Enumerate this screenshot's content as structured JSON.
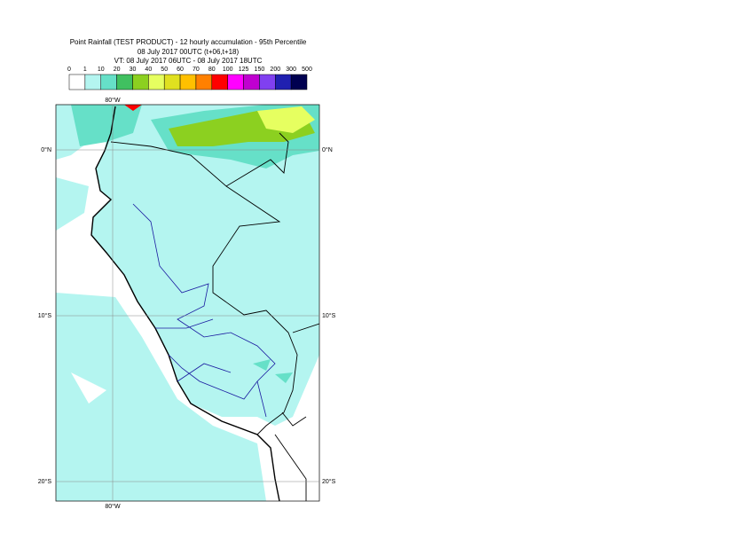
{
  "header": {
    "lines": [
      "Point Rainfall (TEST PRODUCT) - 12 hourly accumulation - 95th Percentile",
      "08 July 2017 00UTC (t+06,t+18)",
      "VT: 08 July 2017 06UTC - 08 July 2017 18UTC"
    ]
  },
  "legend": {
    "labels": [
      "0",
      "1",
      "10",
      "20",
      "30",
      "40",
      "50",
      "60",
      "70",
      "80",
      "100",
      "125",
      "150",
      "200",
      "300",
      "500"
    ],
    "colors": [
      "#ffffff",
      "#b4f5f0",
      "#66e0c8",
      "#40c060",
      "#8cd020",
      "#e6ff60",
      "#e0e020",
      "#ffc000",
      "#ff8000",
      "#ff0000",
      "#ff00ff",
      "#c000d0",
      "#8040f0",
      "#2020b0",
      "#000050"
    ]
  },
  "map": {
    "lon_label": "80°W",
    "lat_labels": [
      "0°N",
      "10°S",
      "20°S"
    ]
  }
}
